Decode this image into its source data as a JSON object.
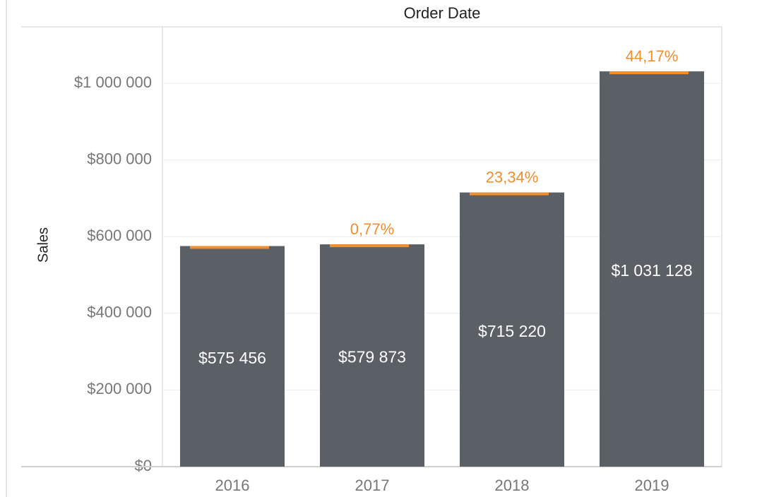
{
  "chart_data": {
    "type": "bar",
    "title": "Order Date",
    "xlabel": "",
    "ylabel": "Sales",
    "categories": [
      "2016",
      "2017",
      "2018",
      "2019"
    ],
    "values": [
      575456,
      579873,
      715220,
      1031128
    ],
    "value_labels": [
      "$575 456",
      "$579 873",
      "$715 220",
      "$1 031 128"
    ],
    "growth_labels": [
      "",
      "0,77%",
      "23,34%",
      "44,17%"
    ],
    "ylim": [
      0,
      1150000
    ],
    "yticks": [
      0,
      200000,
      400000,
      600000,
      800000,
      1000000
    ],
    "ytick_labels": [
      "$0",
      "$200 000",
      "$400 000",
      "$600 000",
      "$800 000",
      "$1 000 000"
    ],
    "grid": true,
    "colors": {
      "bar": "#5b5f66",
      "accent": "#f28e2b",
      "bar_label": "#ffffff",
      "tick": "#777777",
      "grid": "#ececec",
      "axis": "#d0d0d0"
    }
  }
}
